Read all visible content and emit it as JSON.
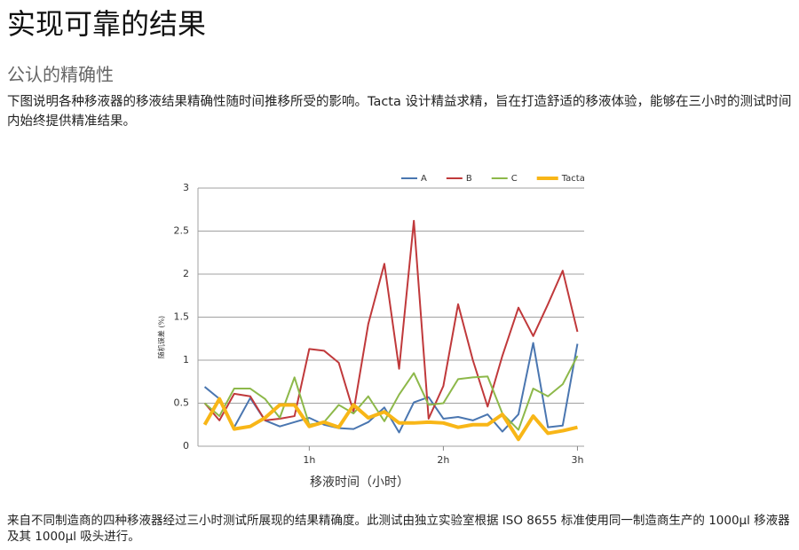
{
  "header": {
    "title": "实现可靠的结果",
    "subtitle": "公认的精确性"
  },
  "intro": "下图说明各种移液器的移液结果精确性随时间推移所受的影响。Tacta 设计精益求精，旨在打造舒适的移液体验，能够在三小时的测试时间内始终提供精准结果。",
  "chart_data": {
    "type": "line",
    "ylabel": "随机误差 (%)",
    "xlabel": "移液时间（小时）",
    "x": [
      0.22,
      0.33,
      0.44,
      0.56,
      0.67,
      0.78,
      0.89,
      1,
      1.11,
      1.22,
      1.33,
      1.44,
      1.56,
      1.67,
      1.78,
      1.89,
      2,
      2.11,
      2.22,
      2.33,
      2.44,
      2.56,
      2.67,
      2.78,
      2.89,
      3
    ],
    "xlim": [
      0.17,
      3.05
    ],
    "xticks": [
      {
        "value": 1,
        "label": "1h"
      },
      {
        "value": 2,
        "label": "2h"
      },
      {
        "value": 3,
        "label": "3h"
      }
    ],
    "ylim": [
      0,
      3
    ],
    "yticks": [
      0,
      0.5,
      1,
      1.5,
      2,
      2.5,
      3
    ],
    "grid": true,
    "legend": "top",
    "series": [
      {
        "name": "A",
        "color": "#4a76b0",
        "width": 2,
        "values": [
          0.69,
          0.55,
          0.22,
          0.56,
          0.3,
          0.23,
          0.28,
          0.33,
          0.25,
          0.21,
          0.2,
          0.28,
          0.45,
          0.16,
          0.51,
          0.57,
          0.32,
          0.34,
          0.3,
          0.37,
          0.17,
          0.37,
          1.2,
          0.22,
          0.24,
          1.19
        ]
      },
      {
        "name": "B",
        "color": "#c0393b",
        "width": 2,
        "values": [
          0.5,
          0.3,
          0.61,
          0.58,
          0.3,
          0.32,
          0.35,
          1.13,
          1.11,
          0.97,
          0.4,
          1.42,
          2.12,
          0.9,
          2.62,
          0.32,
          0.7,
          1.65,
          1.0,
          0.46,
          1.05,
          1.61,
          1.28,
          1.65,
          2.04,
          1.33
        ]
      },
      {
        "name": "C",
        "color": "#8db84a",
        "width": 2,
        "values": [
          0.5,
          0.35,
          0.67,
          0.67,
          0.55,
          0.33,
          0.8,
          0.25,
          0.28,
          0.48,
          0.38,
          0.58,
          0.29,
          0.6,
          0.85,
          0.48,
          0.5,
          0.78,
          0.8,
          0.81,
          0.38,
          0.19,
          0.67,
          0.58,
          0.72,
          1.05
        ]
      },
      {
        "name": "Tacta",
        "color": "#f8b617",
        "width": 4,
        "values": [
          0.25,
          0.55,
          0.2,
          0.23,
          0.33,
          0.48,
          0.48,
          0.23,
          0.28,
          0.22,
          0.48,
          0.33,
          0.4,
          0.27,
          0.27,
          0.28,
          0.27,
          0.22,
          0.25,
          0.25,
          0.37,
          0.08,
          0.35,
          0.15,
          0.18,
          0.22
        ]
      }
    ]
  },
  "footnote": "来自不同制造商的四种移液器经过三小时测试所展现的结果精确度。此测试由独立实验室根据 ISO 8655 标准使用同一制造商生产的 1000µl 移液器及其 1000µl 吸头进行。"
}
